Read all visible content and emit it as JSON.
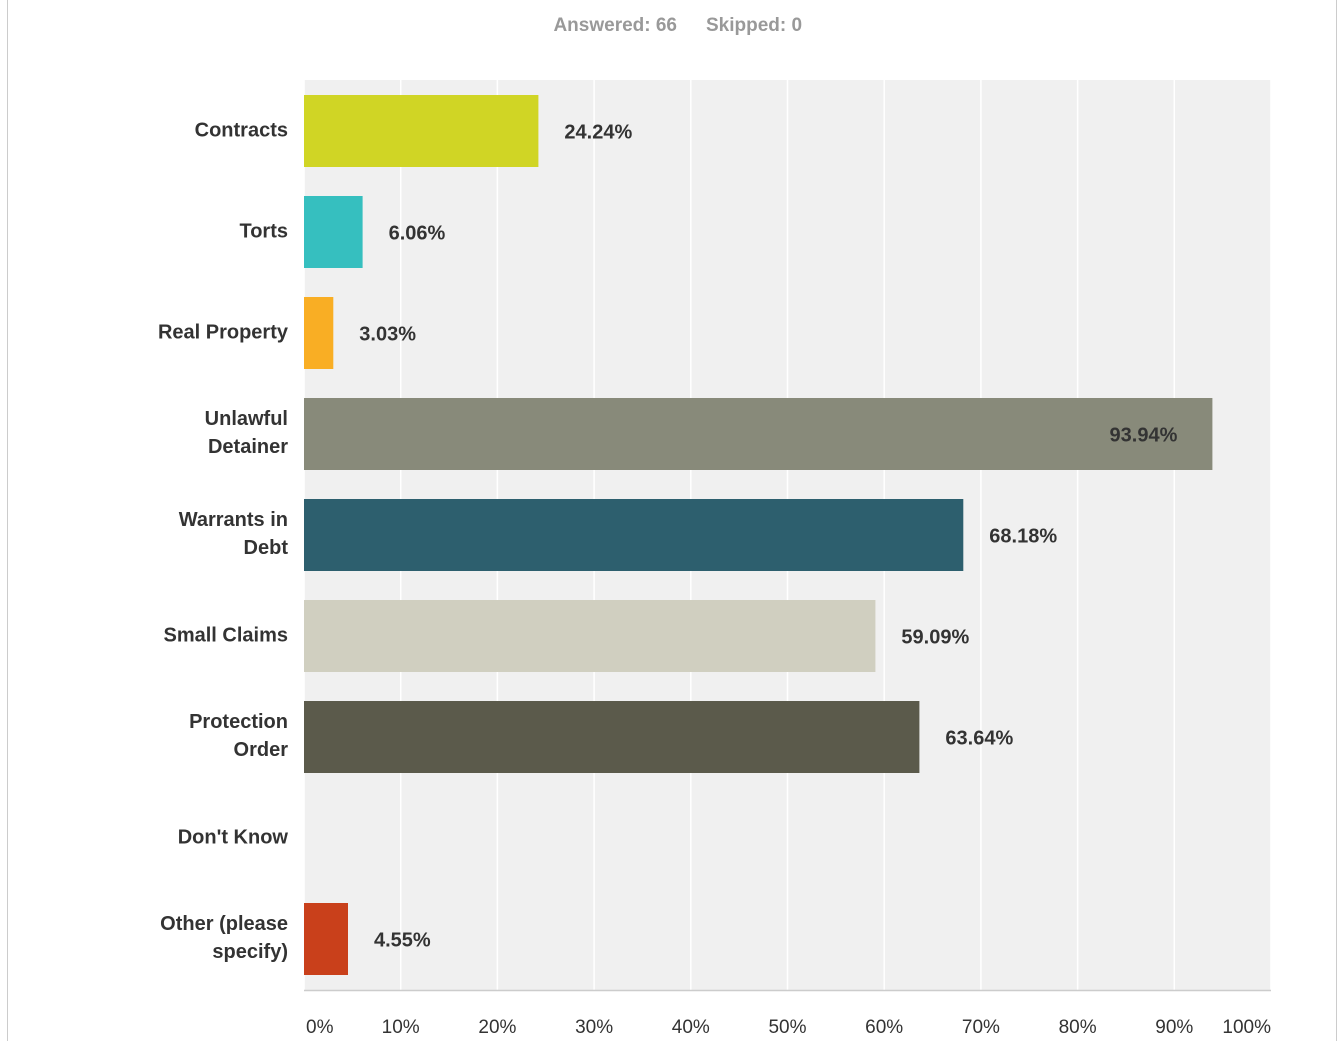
{
  "chart_data": {
    "type": "bar",
    "orientation": "horizontal",
    "answered": "Answered: 66",
    "skipped": "Skipped: 0",
    "categories": [
      "Contracts",
      "Torts",
      "Real Property",
      "Unlawful Detainer",
      "Warrants in Debt",
      "Small Claims",
      "Protection Order",
      "Don't Know",
      "Other (please specify)"
    ],
    "values": [
      24.24,
      6.06,
      3.03,
      93.94,
      68.18,
      59.09,
      63.64,
      0,
      4.55
    ],
    "value_labels": [
      "24.24%",
      "6.06%",
      "3.03%",
      "93.94%",
      "68.18%",
      "59.09%",
      "63.64%",
      null,
      "4.55%"
    ],
    "colors": [
      "#d0d525",
      "#36bfbf",
      "#f9ae24",
      "#888a7a",
      "#2d5f6e",
      "#d0cfc0",
      "#5b5a4b",
      "#999999",
      "#c9401b"
    ],
    "xlim": [
      0,
      100
    ],
    "xticks": [
      {
        "value": 0,
        "label": "0%"
      },
      {
        "value": 10,
        "label": "10%"
      },
      {
        "value": 20,
        "label": "20%"
      },
      {
        "value": 30,
        "label": "30%"
      },
      {
        "value": 40,
        "label": "40%"
      },
      {
        "value": 50,
        "label": "50%"
      },
      {
        "value": 60,
        "label": "60%"
      },
      {
        "value": 70,
        "label": "70%"
      },
      {
        "value": 80,
        "label": "80%"
      },
      {
        "value": 90,
        "label": "90%"
      },
      {
        "value": 100,
        "label": "100%"
      }
    ],
    "grid": true
  }
}
